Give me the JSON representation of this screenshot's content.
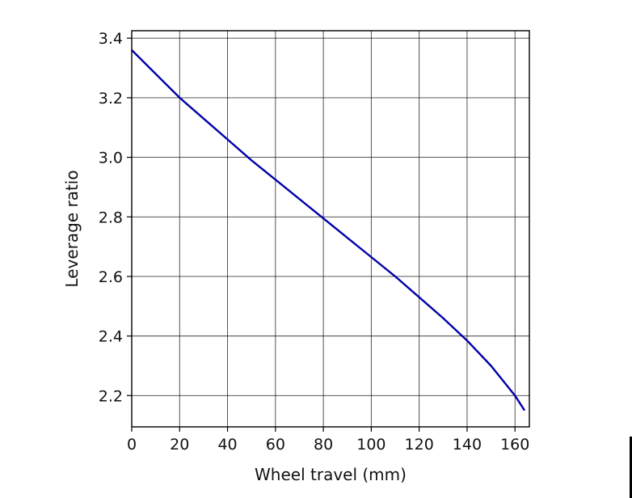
{
  "chart_data": {
    "type": "line",
    "xlabel": "Wheel travel (mm)",
    "ylabel": "Leverage ratio",
    "xlim": [
      0,
      166
    ],
    "ylim": [
      2.095,
      3.425
    ],
    "xticks": [
      "0",
      "20",
      "40",
      "60",
      "80",
      "100",
      "120",
      "140",
      "160"
    ],
    "yticks": [
      "2.2",
      "2.4",
      "2.6",
      "2.8",
      "3.0",
      "3.2",
      "3.4"
    ],
    "grid": true,
    "series": [
      {
        "color": "#0000aa",
        "x": [
          0,
          10,
          20,
          30,
          40,
          50,
          60,
          70,
          80,
          90,
          100,
          110,
          120,
          130,
          140,
          150,
          160,
          164
        ],
        "y": [
          3.36,
          3.28,
          3.2,
          3.13,
          3.06,
          2.99,
          2.925,
          2.86,
          2.795,
          2.73,
          2.665,
          2.6,
          2.53,
          2.46,
          2.385,
          2.3,
          2.2,
          2.15
        ]
      }
    ]
  }
}
